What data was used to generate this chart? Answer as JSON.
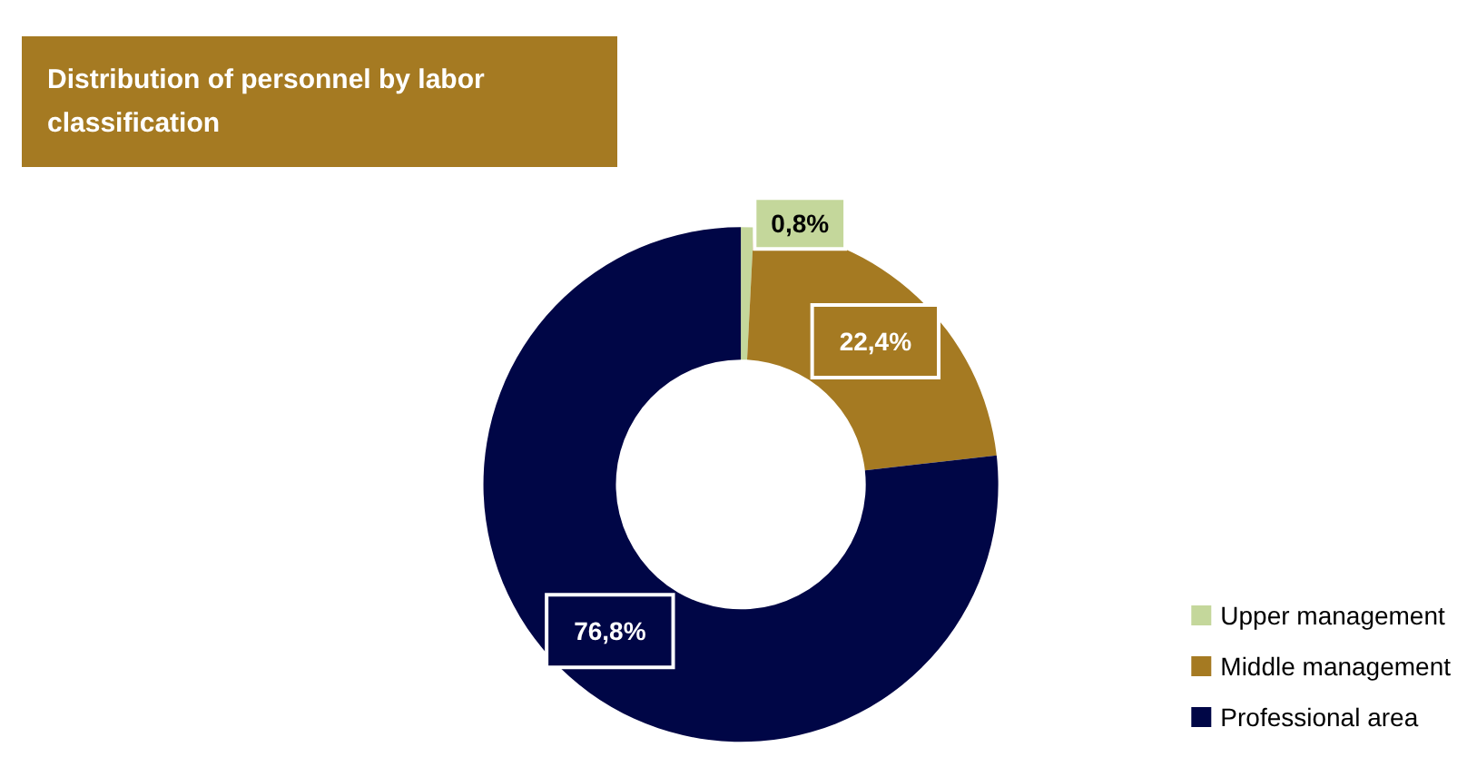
{
  "chart_data": {
    "type": "donut",
    "title": "Distribution of personnel by labor classification",
    "categories": [
      "Upper management",
      "Middle management",
      "Professional area"
    ],
    "values": [
      0.8,
      22.4,
      76.8
    ],
    "colors": [
      "#c4d79b",
      "#a57a22",
      "#000646"
    ],
    "value_labels": [
      "0,8%",
      "22,4%",
      "76,8%"
    ],
    "legend": "bottom right"
  }
}
